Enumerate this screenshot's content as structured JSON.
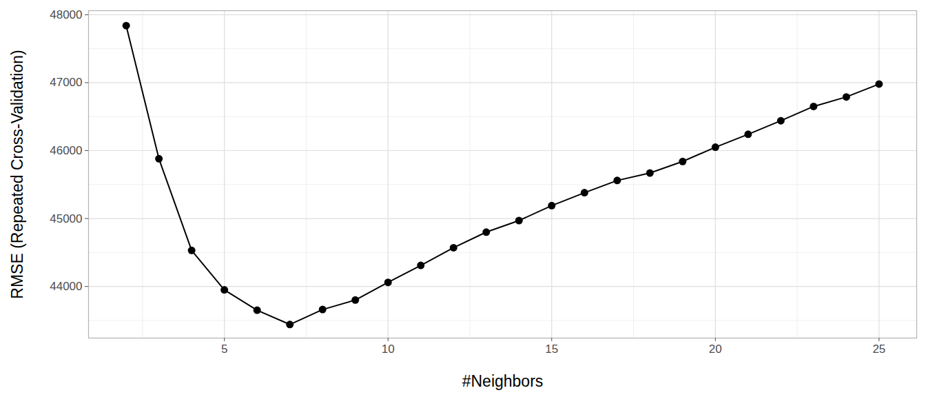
{
  "chart_data": {
    "type": "line",
    "x_label": "#Neighbors",
    "y_label": "RMSE (Repeated Cross-Validation)",
    "x": [
      2,
      3,
      4,
      5,
      6,
      7,
      8,
      9,
      10,
      11,
      12,
      13,
      14,
      15,
      16,
      17,
      18,
      19,
      20,
      21,
      22,
      23,
      24,
      25
    ],
    "values": [
      47840,
      45880,
      44530,
      43950,
      43650,
      43440,
      43660,
      43800,
      44060,
      44310,
      44570,
      44800,
      44970,
      45190,
      45380,
      45560,
      45670,
      45840,
      46050,
      46240,
      46440,
      46650,
      46790,
      46980
    ],
    "color": "#000000",
    "marker": "circle",
    "xlim": [
      0.85,
      26.15
    ],
    "ylim": [
      43240,
      48060
    ],
    "xticks": [
      5,
      10,
      15,
      20,
      25
    ],
    "yticks": [
      44000,
      45000,
      46000,
      47000,
      48000
    ],
    "grid": true
  }
}
